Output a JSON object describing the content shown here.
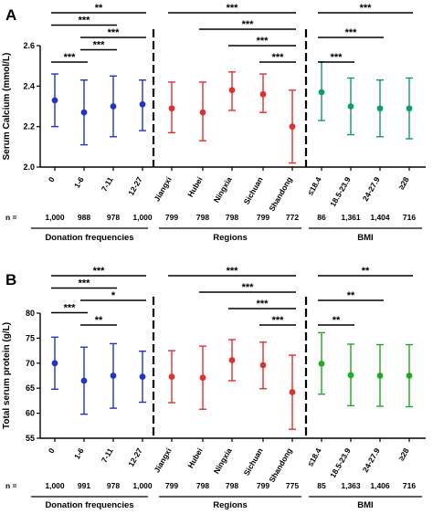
{
  "colors": {
    "donation": "#2233cc",
    "regions": "#e03030",
    "bmi_A": "#119977",
    "bmi_B": "#22aa22",
    "axis": "#000000"
  },
  "chart_data": [
    {
      "panel": "A",
      "type": "scatter",
      "style": "mean with error bars",
      "ylabel": "Serum Calcium (mmol/L)",
      "ylim": [
        2.0,
        2.6
      ],
      "yticks": [
        "2.0",
        "2.2",
        "2.4",
        "2.6"
      ],
      "groups": [
        {
          "name": "Donation frequencies",
          "color_key": "donation",
          "categories": [
            "0",
            "1-6",
            "7-11",
            "12-27"
          ],
          "mean": [
            2.33,
            2.27,
            2.3,
            2.31
          ],
          "lower": [
            2.2,
            2.11,
            2.15,
            2.18
          ],
          "upper": [
            2.46,
            2.43,
            2.45,
            2.43
          ],
          "n": [
            "1,000",
            "988",
            "978",
            "1,000"
          ]
        },
        {
          "name": "Regions",
          "color_key": "regions",
          "categories": [
            "Jiangxi",
            "Hubei",
            "Ningxia",
            "Sichuan",
            "Shandong"
          ],
          "mean": [
            2.29,
            2.27,
            2.38,
            2.36,
            2.2
          ],
          "lower": [
            2.17,
            2.13,
            2.28,
            2.27,
            2.02
          ],
          "upper": [
            2.42,
            2.42,
            2.47,
            2.46,
            2.38
          ],
          "n": [
            "799",
            "798",
            "798",
            "799",
            "772"
          ]
        },
        {
          "name": "BMI",
          "color_key": "bmi_A",
          "categories": [
            "≤18.4",
            "18.5-23.9",
            "24-27.9",
            "≥28"
          ],
          "mean": [
            2.37,
            2.3,
            2.29,
            2.29
          ],
          "lower": [
            2.23,
            2.16,
            2.15,
            2.14
          ],
          "upper": [
            2.52,
            2.44,
            2.43,
            2.44
          ],
          "n": [
            "86",
            "1,361",
            "1,404",
            "716"
          ]
        }
      ],
      "significance": [
        {
          "group": 0,
          "from": 0,
          "to": 3,
          "stars": "**"
        },
        {
          "group": 0,
          "from": 0,
          "to": 2,
          "stars": "***"
        },
        {
          "group": 0,
          "from": 1,
          "to": 3,
          "stars": "***"
        },
        {
          "group": 0,
          "from": 1,
          "to": 2,
          "stars": "***"
        },
        {
          "group": 0,
          "from": 0,
          "to": 1,
          "stars": "***"
        },
        {
          "group": 1,
          "from": 0,
          "to": 4,
          "stars": "***"
        },
        {
          "group": 1,
          "from": 1,
          "to": 4,
          "stars": "***"
        },
        {
          "group": 1,
          "from": 2,
          "to": 4,
          "stars": "***"
        },
        {
          "group": 1,
          "from": 3,
          "to": 4,
          "stars": "***"
        },
        {
          "group": 2,
          "from": 0,
          "to": 3,
          "stars": "***"
        },
        {
          "group": 2,
          "from": 0,
          "to": 2,
          "stars": "***"
        },
        {
          "group": 2,
          "from": 0,
          "to": 1,
          "stars": "***"
        }
      ]
    },
    {
      "panel": "B",
      "type": "scatter",
      "style": "mean with error bars",
      "ylabel": "Total serum protein (g/L)",
      "ylim": [
        55,
        80
      ],
      "yticks": [
        "55",
        "60",
        "65",
        "70",
        "75",
        "80"
      ],
      "groups": [
        {
          "name": "Donation frequencies",
          "color_key": "donation",
          "categories": [
            "0",
            "1-6",
            "7-11",
            "12-27"
          ],
          "mean": [
            70.0,
            66.5,
            67.5,
            67.3
          ],
          "lower": [
            64.8,
            59.8,
            61.0,
            62.2
          ],
          "upper": [
            75.2,
            73.2,
            73.9,
            72.4
          ],
          "n": [
            "1,000",
            "991",
            "978",
            "1,000"
          ]
        },
        {
          "name": "Regions",
          "color_key": "regions",
          "categories": [
            "Jiangxi",
            "Hubei",
            "Ningxia",
            "Sichuan",
            "Shandong"
          ],
          "mean": [
            67.3,
            67.1,
            70.6,
            69.6,
            64.2
          ],
          "lower": [
            62.1,
            60.8,
            66.5,
            64.9,
            56.8
          ],
          "upper": [
            72.5,
            73.4,
            74.7,
            74.2,
            71.6
          ],
          "n": [
            "799",
            "798",
            "798",
            "799",
            "775"
          ]
        },
        {
          "name": "BMI",
          "color_key": "bmi_B",
          "categories": [
            "≤18.4",
            "18.5-23.9",
            "24-27.9",
            "≥28"
          ],
          "mean": [
            69.9,
            67.6,
            67.5,
            67.5
          ],
          "lower": [
            63.8,
            61.5,
            61.4,
            61.3
          ],
          "upper": [
            76.1,
            73.8,
            73.7,
            73.7
          ],
          "n": [
            "85",
            "1,363",
            "1,406",
            "716"
          ]
        }
      ],
      "significance": [
        {
          "group": 0,
          "from": 0,
          "to": 3,
          "stars": "***"
        },
        {
          "group": 0,
          "from": 0,
          "to": 2,
          "stars": "***"
        },
        {
          "group": 0,
          "from": 1,
          "to": 3,
          "stars": "*"
        },
        {
          "group": 0,
          "from": 0,
          "to": 1,
          "stars": "***"
        },
        {
          "group": 0,
          "from": 1,
          "to": 2,
          "stars": "**"
        },
        {
          "group": 1,
          "from": 0,
          "to": 4,
          "stars": "***"
        },
        {
          "group": 1,
          "from": 1,
          "to": 4,
          "stars": "***"
        },
        {
          "group": 1,
          "from": 2,
          "to": 4,
          "stars": "***"
        },
        {
          "group": 1,
          "from": 3,
          "to": 4,
          "stars": "***"
        },
        {
          "group": 2,
          "from": 0,
          "to": 3,
          "stars": "**"
        },
        {
          "group": 2,
          "from": 0,
          "to": 2,
          "stars": "**"
        },
        {
          "group": 2,
          "from": 0,
          "to": 1,
          "stars": "**"
        }
      ]
    }
  ],
  "n_prefix": "n ="
}
